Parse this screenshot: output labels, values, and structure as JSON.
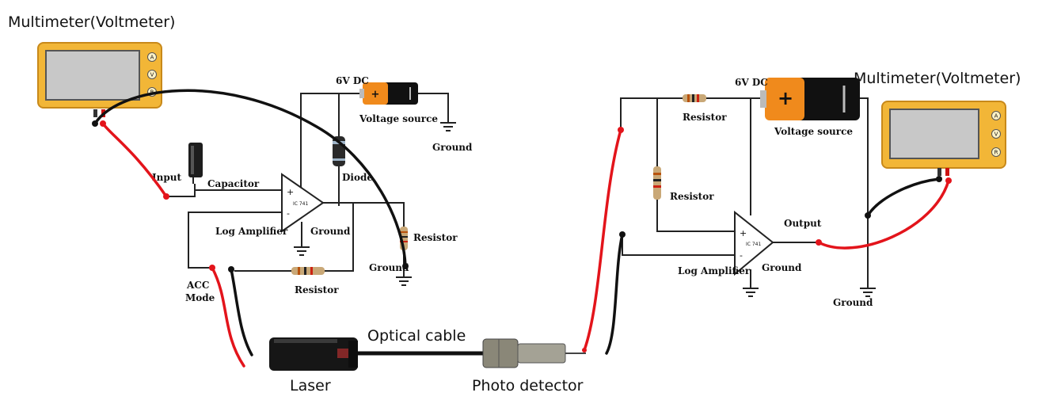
{
  "labels": {
    "multimeter_left": "Multimeter(Voltmeter)",
    "multimeter_right": "Multimeter(Voltmeter)",
    "laser": "Laser",
    "optical_cable": "Optical cable",
    "photo_detector": "Photo detector",
    "left_circuit": {
      "dc": "6V DC",
      "voltage_source": "Voltage source",
      "ground_top": "Ground",
      "diode": "Diode",
      "capacitor": "Capacitor",
      "input": "Input",
      "ic": "IC 741",
      "log_amp": "Log Amplifier",
      "ground_mid": "Ground",
      "resistor_right": "Resistor",
      "ground_right": "Ground",
      "acc_line1": "ACC",
      "acc_line2": "Mode",
      "resistor_bottom": "Resistor"
    },
    "right_circuit": {
      "dc": "6V DC",
      "resistor_top": "Resistor",
      "voltage_source": "Voltage source",
      "resistor_left": "Resistor",
      "output": "Output",
      "ic": "IC 741",
      "log_amp": "Log Amplifier",
      "ground_mid": "Ground",
      "ground_right": "Ground"
    },
    "meter_buttons": [
      "A",
      "V",
      "R"
    ],
    "opamp_plus": "+",
    "opamp_minus": "-"
  },
  "colors": {
    "meter_body": "#f2b637",
    "meter_screen": "#c8c8c8",
    "probe_red": "#e3141b",
    "probe_black": "#111111",
    "battery_orange": "#f08a1c"
  }
}
